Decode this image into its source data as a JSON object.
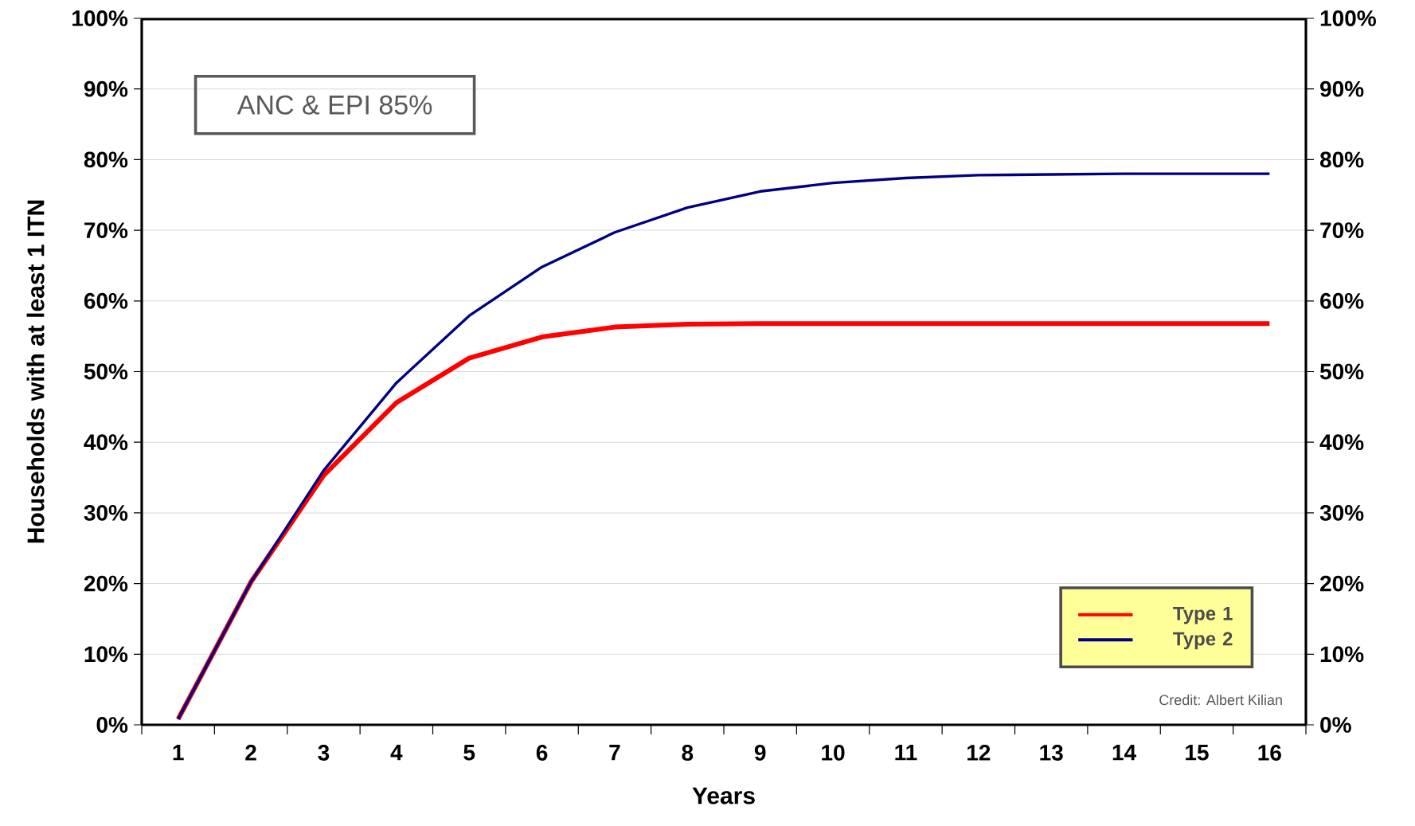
{
  "chart_data": {
    "type": "line",
    "xlabel": "Years",
    "ylabel": "Households with at least 1 ITN",
    "categories": [
      "1",
      "2",
      "3",
      "4",
      "5",
      "6",
      "7",
      "8",
      "9",
      "10",
      "11",
      "12",
      "13",
      "14",
      "15",
      "16"
    ],
    "series": [
      {
        "name": "Type 1",
        "color": "#ff0000",
        "values": [
          0.8,
          20.2,
          35.3,
          45.6,
          51.9,
          54.9,
          56.3,
          56.7,
          56.8,
          56.8,
          56.8,
          56.8,
          56.8,
          56.8,
          56.8,
          56.8
        ]
      },
      {
        "name": "Type 2",
        "color": "#000080",
        "values": [
          0.8,
          20.2,
          36.0,
          48.4,
          57.9,
          64.8,
          69.7,
          73.2,
          75.5,
          76.7,
          77.4,
          77.8,
          77.9,
          78.0,
          78.0,
          78.0
        ]
      }
    ],
    "ylim": [
      0,
      100
    ],
    "yticks": [
      {
        "value": 0,
        "label": "0%"
      },
      {
        "value": 10,
        "label": "10%"
      },
      {
        "value": 20,
        "label": "20%"
      },
      {
        "value": 30,
        "label": "30%"
      },
      {
        "value": 40,
        "label": "40%"
      },
      {
        "value": 50,
        "label": "50%"
      },
      {
        "value": 60,
        "label": "60%"
      },
      {
        "value": 70,
        "label": "70%"
      },
      {
        "value": 80,
        "label": "80%"
      },
      {
        "value": 90,
        "label": "90%"
      },
      {
        "value": 100,
        "label": "100%"
      }
    ],
    "y2lim": [
      0,
      100
    ],
    "y2ticks": [
      {
        "value": 0,
        "label": "0%"
      },
      {
        "value": 10,
        "label": "10%"
      },
      {
        "value": 20,
        "label": "20%"
      },
      {
        "value": 30,
        "label": "30%"
      },
      {
        "value": 40,
        "label": "40%"
      },
      {
        "value": 50,
        "label": "50%"
      },
      {
        "value": 60,
        "label": "60%"
      },
      {
        "value": 70,
        "label": "70%"
      },
      {
        "value": 80,
        "label": "80%"
      },
      {
        "value": 90,
        "label": "90%"
      },
      {
        "value": 100,
        "label": "100%"
      }
    ],
    "annotations": [
      "ANC & EPI 85%",
      "Credit: Albert Kilian"
    ],
    "grid": "y",
    "legend": "bottom right",
    "marker": "none",
    "line_style": "solid"
  }
}
